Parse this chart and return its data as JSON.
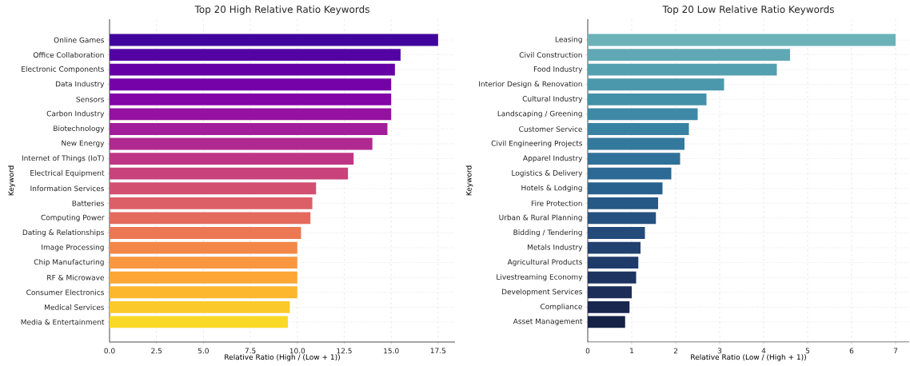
{
  "chart_data": [
    {
      "type": "bar",
      "orientation": "horizontal",
      "title": "Top 20 High Relative Ratio Keywords",
      "xlabel": "Relative Ratio (High / (Low + 1))",
      "ylabel": "Keyword",
      "grid": true,
      "categories": [
        "Online Games",
        "Office Collaboration",
        "Electronic Components",
        "Data Industry",
        "Sensors",
        "Carbon Industry",
        "Biotechnology",
        "New Energy",
        "Internet of Things (IoT)",
        "Electrical Equipment",
        "Information Services",
        "Batteries",
        "Computing Power",
        "Dating & Relationships",
        "Image Processing",
        "Chip Manufacturing",
        "RF & Microwave",
        "Consumer Electronics",
        "Medical Services",
        "Media & Entertainment"
      ],
      "values": [
        17.5,
        15.5,
        15.2,
        15.0,
        15.0,
        15.0,
        14.8,
        14.0,
        13.0,
        12.7,
        11.0,
        10.8,
        10.7,
        10.2,
        10.0,
        10.0,
        10.0,
        10.0,
        9.6,
        9.5
      ],
      "colors": [
        "#41049d",
        "#5402a3",
        "#6500a7",
        "#7501a8",
        "#8405a7",
        "#9511a1",
        "#a21d9a",
        "#b02991",
        "#bd3786",
        "#c8437b",
        "#d24f71",
        "#dc5e66",
        "#e46a5d",
        "#ec7853",
        "#f38748",
        "#f8973f",
        "#fca636",
        "#fdb72f",
        "#fcc92a",
        "#f9d925"
      ],
      "xlim": [
        0,
        18.4
      ],
      "xticks": [
        {
          "value": 0,
          "label": "0.0"
        },
        2.5,
        {
          "value": 5,
          "label": "5.0"
        },
        7.5,
        {
          "value": 10,
          "label": "10.0"
        },
        12.5,
        {
          "value": 15,
          "label": "15.0"
        },
        17.5
      ]
    },
    {
      "type": "bar",
      "orientation": "horizontal",
      "title": "Top 20 Low Relative Ratio Keywords",
      "xlabel": "Relative Ratio (Low / (High + 1))",
      "ylabel": "Keyword",
      "grid": true,
      "categories": [
        "Leasing",
        "Civil Construction",
        "Food Industry",
        "Interior Design & Renovation",
        "Cultural Industry",
        "Landscaping / Greening",
        "Customer Service",
        "Civil Engineering Projects",
        "Apparel Industry",
        "Logistics & Delivery",
        "Hotels & Lodging",
        "Fire Protection",
        "Urban & Rural Planning",
        "Bidding / Tendering",
        "Metals Industry",
        "Agricultural Products",
        "Livestreaming Economy",
        "Development Services",
        "Compliance",
        "Asset Management"
      ],
      "values": [
        7.0,
        4.6,
        4.3,
        3.1,
        2.7,
        2.5,
        2.3,
        2.2,
        2.1,
        1.9,
        1.7,
        1.6,
        1.55,
        1.3,
        1.2,
        1.15,
        1.1,
        1.0,
        0.95,
        0.85
      ],
      "colors": [
        "#6cb2b9",
        "#5fa8b4",
        "#55a0b0",
        "#4b98ad",
        "#4391a9",
        "#3d89a6",
        "#3781a2",
        "#33799e",
        "#2f7199",
        "#2c6994",
        "#29618e",
        "#275987",
        "#255180",
        "#234a79",
        "#214271",
        "#1f3b69",
        "#1d3461",
        "#1b2d58",
        "#19274f",
        "#162245"
      ],
      "xlim": [
        0,
        7.31
      ],
      "xticks": [
        0,
        1,
        2,
        3,
        4,
        5,
        6,
        7
      ]
    }
  ]
}
